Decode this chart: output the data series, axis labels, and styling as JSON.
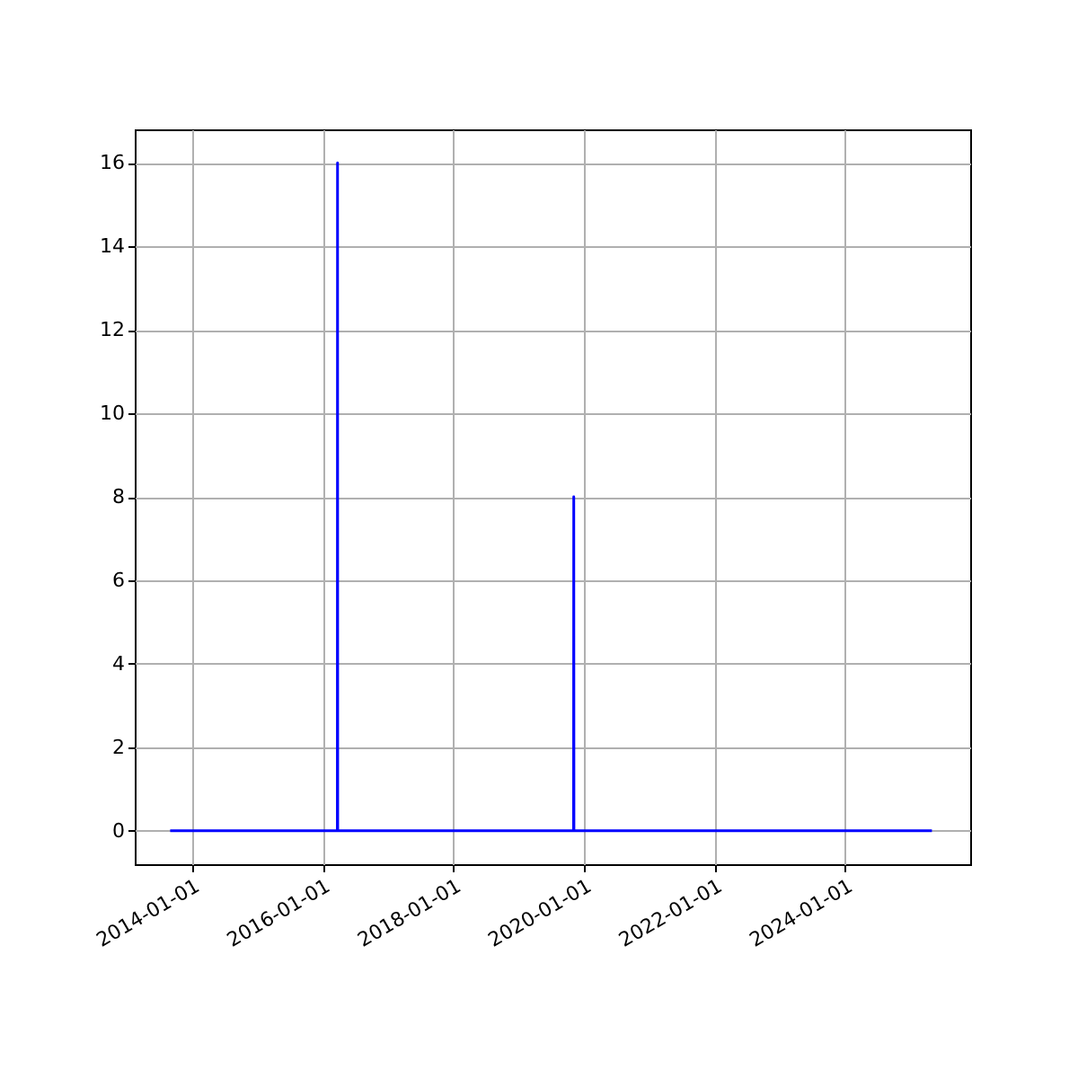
{
  "chart_data": {
    "type": "line",
    "x": [
      "2013-09-01",
      "2016-03-24",
      "2016-03-25",
      "2016-03-26",
      "2019-11-05",
      "2019-11-06",
      "2019-11-07",
      "2025-05-01"
    ],
    "series": [
      {
        "color": "#0000ff",
        "values": [
          0,
          0,
          16,
          0,
          0,
          8,
          0,
          0
        ]
      }
    ],
    "xlim": [
      "2013-02-15",
      "2025-12-01"
    ],
    "xticks": [
      "2014-01-01",
      "2016-01-01",
      "2018-01-01",
      "2020-01-01",
      "2022-01-01",
      "2024-01-01"
    ],
    "ylim": [
      -0.8,
      16.8
    ],
    "yticks": [
      0,
      2,
      4,
      6,
      8,
      10,
      12,
      14,
      16
    ],
    "grid": true,
    "marker": "none",
    "line_style": "solid"
  }
}
